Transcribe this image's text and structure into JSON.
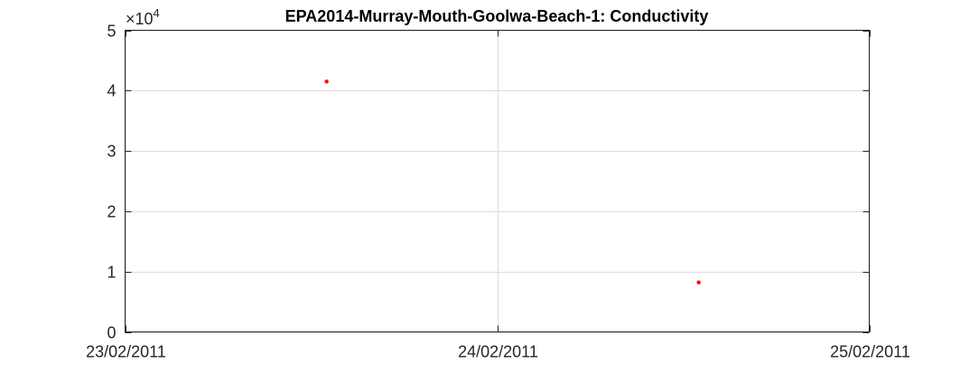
{
  "chart_data": {
    "type": "scatter",
    "title": "EPA2014-Murray-Mouth-Goolwa-Beach-1: Conductivity",
    "xlabel": "",
    "ylabel": "",
    "x_ticks": [
      "23/02/2011",
      "24/02/2011",
      "25/02/2011"
    ],
    "xlim": [
      "23/02/2011 00:00",
      "25/02/2011 00:00"
    ],
    "ylim": [
      0,
      50000
    ],
    "y_ticks": [
      0,
      1,
      2,
      3,
      4,
      5
    ],
    "y_tick_labels": [
      "0",
      "1",
      "2",
      "3",
      "4",
      "5"
    ],
    "y_exponent_label": {
      "base": "×10",
      "power": "4"
    },
    "grid": true,
    "series": [
      {
        "color": "#ff0000",
        "points": [
          {
            "x": "23/02/2011 13:00",
            "y": 41500
          },
          {
            "x": "24/02/2011 13:00",
            "y": 8200
          }
        ]
      }
    ]
  }
}
